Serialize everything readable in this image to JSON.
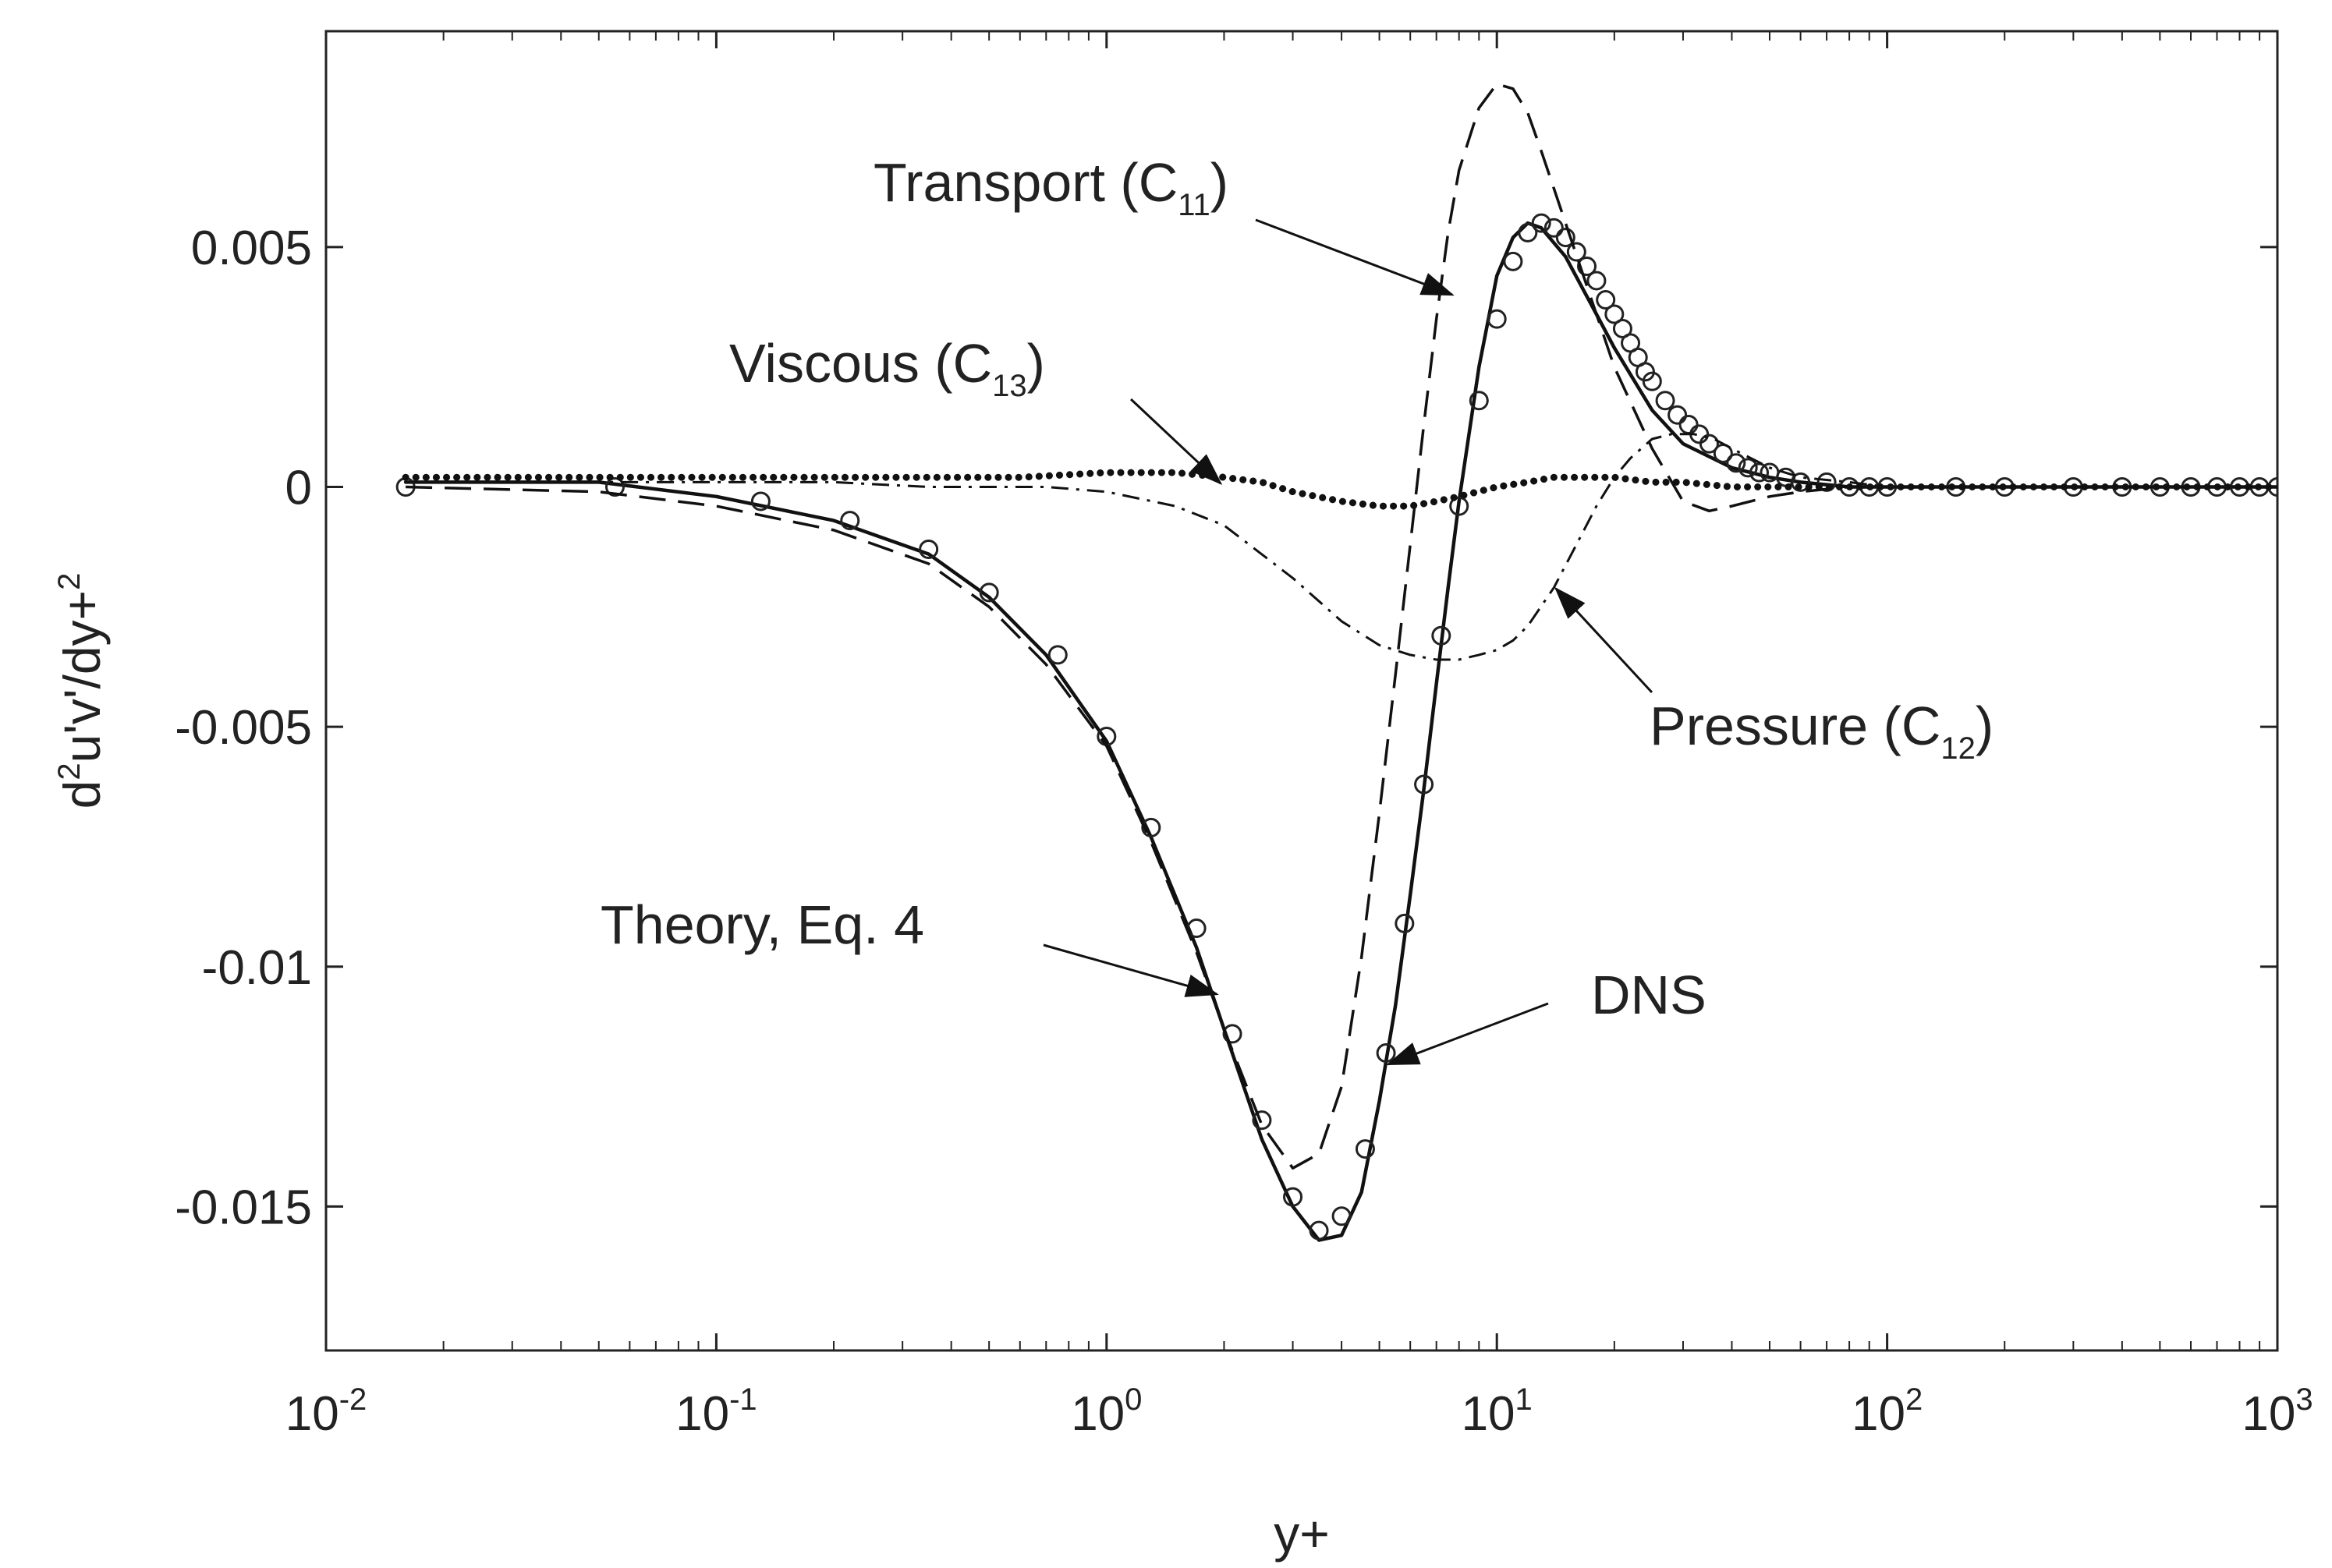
{
  "chart_data": {
    "type": "line",
    "x_scale": "log",
    "xlim": [
      0.01,
      1000
    ],
    "ylim": [
      -0.018,
      0.0095
    ],
    "xlabel": "y+",
    "ylabel": {
      "base": "d",
      "sup1": "2",
      "mid": "u'v'/dy+",
      "sup2": "2"
    },
    "x_ticks": [
      {
        "value": 0.01,
        "base": "10",
        "exp": "-2"
      },
      {
        "value": 0.1,
        "base": "10",
        "exp": "-1"
      },
      {
        "value": 1,
        "base": "10",
        "exp": "0"
      },
      {
        "value": 10,
        "base": "10",
        "exp": "1"
      },
      {
        "value": 100,
        "base": "10",
        "exp": "2"
      },
      {
        "value": 1000,
        "base": "10",
        "exp": "3"
      }
    ],
    "y_ticks": [
      {
        "value": 0.005,
        "label": "0.005"
      },
      {
        "value": 0,
        "label": "0"
      },
      {
        "value": -0.005,
        "label": "-0.005"
      },
      {
        "value": -0.01,
        "label": "-0.01"
      },
      {
        "value": -0.015,
        "label": "-0.015"
      }
    ],
    "series": [
      {
        "name": "Theory, Eq. 4",
        "style": "solid",
        "x": [
          0.016,
          0.05,
          0.1,
          0.2,
          0.35,
          0.5,
          0.7,
          1.0,
          1.3,
          1.7,
          2.0,
          2.5,
          3.0,
          3.5,
          4.0,
          4.5,
          5.0,
          5.5,
          6.0,
          6.5,
          7.0,
          7.5,
          8.0,
          9.0,
          10,
          11,
          12,
          13,
          15,
          18,
          20,
          25,
          30,
          40,
          50,
          60,
          80,
          100,
          1000
        ],
        "y": [
          0.0001,
          0.0001,
          -0.0002,
          -0.0007,
          -0.0014,
          -0.0023,
          -0.0035,
          -0.0053,
          -0.0073,
          -0.0096,
          -0.0113,
          -0.0136,
          -0.015,
          -0.0157,
          -0.0156,
          -0.0147,
          -0.0128,
          -0.0108,
          -0.0085,
          -0.0063,
          -0.0041,
          -0.0021,
          -0.0003,
          0.0025,
          0.0044,
          0.0052,
          0.0055,
          0.0054,
          0.0048,
          0.0036,
          0.0029,
          0.0016,
          0.0009,
          0.0004,
          0.0002,
          0.0001,
          0.0,
          0.0,
          0.0
        ]
      },
      {
        "name": "DNS",
        "style": "markers",
        "x": [
          0.016,
          0.055,
          0.13,
          0.22,
          0.35,
          0.5,
          0.75,
          1.0,
          1.3,
          1.7,
          2.1,
          2.5,
          3.0,
          3.5,
          4.0,
          4.6,
          5.2,
          5.8,
          6.5,
          7.2,
          8.0,
          9.0,
          10,
          11,
          12,
          13,
          14,
          15,
          16,
          17,
          18,
          19,
          20,
          21,
          22,
          23,
          24,
          25,
          27,
          29,
          31,
          33,
          35,
          38,
          41,
          44,
          47,
          50,
          55,
          60,
          70,
          80,
          90,
          100,
          150,
          200,
          300,
          400,
          500,
          600,
          700,
          800,
          900,
          1000
        ],
        "y": [
          0.0,
          0.0,
          -0.0003,
          -0.0007,
          -0.0013,
          -0.0022,
          -0.0035,
          -0.0052,
          -0.0071,
          -0.0092,
          -0.0114,
          -0.0132,
          -0.0148,
          -0.0155,
          -0.0152,
          -0.0138,
          -0.0118,
          -0.0091,
          -0.0062,
          -0.0031,
          -0.0004,
          0.0018,
          0.0035,
          0.0047,
          0.0053,
          0.0055,
          0.0054,
          0.0052,
          0.0049,
          0.0046,
          0.0043,
          0.0039,
          0.0036,
          0.0033,
          0.003,
          0.0027,
          0.0024,
          0.0022,
          0.0018,
          0.0015,
          0.0013,
          0.0011,
          0.0009,
          0.0007,
          0.0005,
          0.0004,
          0.0003,
          0.0003,
          0.0002,
          0.0001,
          0.0001,
          0.0,
          0.0,
          0.0,
          0.0,
          0.0,
          0.0,
          0.0,
          0.0,
          0.0,
          0.0,
          0.0,
          0.0,
          0.0
        ]
      },
      {
        "name": "Transport (C11)",
        "style": "dashed",
        "x": [
          0.016,
          0.05,
          0.1,
          0.2,
          0.35,
          0.5,
          0.7,
          1.0,
          1.3,
          1.7,
          2.0,
          2.5,
          3.0,
          3.5,
          4.0,
          4.5,
          5.0,
          5.5,
          6.0,
          6.5,
          7.0,
          7.5,
          8.0,
          9.0,
          10,
          11,
          12,
          13,
          15,
          18,
          20,
          25,
          30,
          35,
          40,
          50,
          60,
          80,
          100,
          1000
        ],
        "y": [
          0.0,
          -0.0001,
          -0.0004,
          -0.0009,
          -0.0016,
          -0.0025,
          -0.0037,
          -0.0054,
          -0.0074,
          -0.0097,
          -0.0113,
          -0.0133,
          -0.0142,
          -0.0139,
          -0.0125,
          -0.0098,
          -0.0068,
          -0.0039,
          -0.0012,
          0.0013,
          0.0035,
          0.0053,
          0.0066,
          0.0079,
          0.0084,
          0.0083,
          0.0078,
          0.007,
          0.0055,
          0.0036,
          0.0025,
          0.0008,
          -0.0003,
          -0.0005,
          -0.0004,
          -0.0002,
          -0.0001,
          0.0,
          0.0,
          0.0
        ]
      },
      {
        "name": "Pressure (C12)",
        "style": "dashdot",
        "x": [
          0.016,
          0.05,
          0.1,
          0.2,
          0.35,
          0.5,
          0.7,
          1.0,
          1.5,
          2.0,
          3.0,
          4.0,
          5.0,
          6.0,
          7.0,
          8.0,
          9.0,
          10,
          11,
          12,
          14,
          16,
          18,
          20,
          22,
          25,
          28,
          32,
          36,
          40,
          50,
          60,
          80,
          100,
          1000
        ],
        "y": [
          0.0001,
          0.0001,
          0.0001,
          0.0001,
          0.0,
          0.0,
          0.0,
          -0.0001,
          -0.0004,
          -0.0008,
          -0.0019,
          -0.0028,
          -0.0033,
          -0.0035,
          -0.0036,
          -0.0036,
          -0.0035,
          -0.0034,
          -0.0032,
          -0.0029,
          -0.0021,
          -0.0012,
          -0.0004,
          0.0002,
          0.0006,
          0.001,
          0.0011,
          0.0011,
          0.001,
          0.0008,
          0.0004,
          0.0002,
          0.0001,
          0.0,
          0.0
        ]
      },
      {
        "name": "Viscous (C13)",
        "style": "dotted",
        "x": [
          0.016,
          0.05,
          0.1,
          0.3,
          0.6,
          1.0,
          1.5,
          2.0,
          2.5,
          3.0,
          4.0,
          5.0,
          6.0,
          7.0,
          8.0,
          10,
          12,
          14,
          17,
          20,
          25,
          30,
          40,
          60,
          100,
          1000
        ],
        "y": [
          0.0002,
          0.0002,
          0.0002,
          0.0002,
          0.0002,
          0.0003,
          0.0003,
          0.0002,
          0.0001,
          -0.0001,
          -0.0003,
          -0.0004,
          -0.0004,
          -0.0003,
          -0.0002,
          0.0,
          0.0001,
          0.0002,
          0.0002,
          0.0002,
          0.0001,
          0.0001,
          0.0,
          0.0,
          0.0,
          0.0
        ]
      }
    ],
    "annotations": [
      {
        "name": "transport",
        "text": "Transport (C",
        "sub": "11",
        "close": ")"
      },
      {
        "name": "viscous",
        "text": "Viscous (C",
        "sub": "13",
        "close": ")"
      },
      {
        "name": "pressure",
        "text": "Pressure (C",
        "sub": "12",
        "close": ")"
      },
      {
        "name": "theory",
        "text": "Theory, Eq. 4",
        "sub": "",
        "close": ""
      },
      {
        "name": "dns",
        "text": "DNS",
        "sub": "",
        "close": ""
      }
    ]
  }
}
